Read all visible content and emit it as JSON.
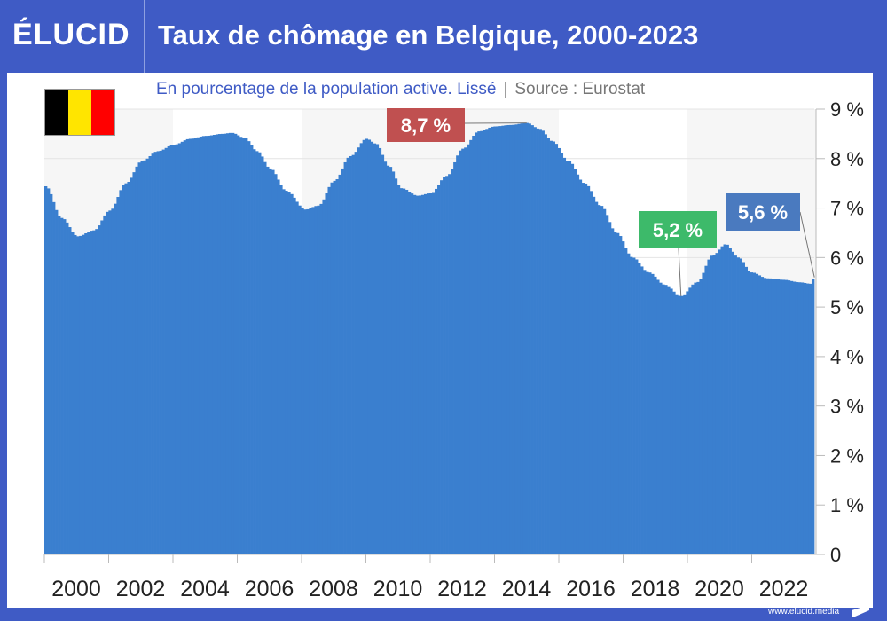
{
  "header": {
    "logo": "ÉLUCID",
    "title": "Taux de chômage en Belgique, 2000-2023"
  },
  "subtitle": {
    "text": "En pourcentage de la population active. Lissé",
    "separator": "|",
    "source": "Source : Eurostat"
  },
  "flag": {
    "colors": [
      "#000000",
      "#ffe500",
      "#ff0000"
    ]
  },
  "footer": {
    "url": "www.elucid.media"
  },
  "colors": {
    "bar": "#3a7fcf",
    "band": "#f6f6f6",
    "label_max": "#c05050",
    "label_min": "#3dba6a",
    "label_last": "#4a7abf"
  },
  "chart_data": {
    "type": "bar",
    "title": "Taux de chômage en Belgique, 2000-2023",
    "subtitle": "En pourcentage de la population active. Lissé",
    "xlabel": "",
    "ylabel": "",
    "xlim": [
      2000,
      2024
    ],
    "ylim": [
      0,
      9
    ],
    "grid": true,
    "y_ticks": [
      0,
      1,
      2,
      3,
      4,
      5,
      6,
      7,
      8,
      9
    ],
    "y_tick_labels": [
      "0",
      "1 %",
      "2 %",
      "3 %",
      "4 %",
      "5 %",
      "6 %",
      "7 %",
      "8 %",
      "9 %"
    ],
    "x_ticks": [
      2000,
      2002,
      2004,
      2006,
      2008,
      2010,
      2012,
      2014,
      2016,
      2018,
      2020,
      2022
    ],
    "x_tick_labels": [
      "2000",
      "2002",
      "2004",
      "2006",
      "2008",
      "2010",
      "2012",
      "2014",
      "2016",
      "2018",
      "2020",
      "2022"
    ],
    "series": [
      {
        "name": "Taux de chômage",
        "frequency": "monthly",
        "x": [
          2000.0,
          2000.5,
          2001.0,
          2001.5,
          2002.0,
          2002.5,
          2003.0,
          2003.5,
          2004.0,
          2004.5,
          2005.0,
          2005.5,
          2005.8,
          2006.2,
          2006.6,
          2007.0,
          2007.5,
          2008.1,
          2008.5,
          2009.0,
          2009.5,
          2010.0,
          2010.3,
          2010.7,
          2011.1,
          2011.6,
          2012.0,
          2012.5,
          2013.0,
          2013.5,
          2014.0,
          2014.5,
          2015.0,
          2015.4,
          2015.8,
          2016.3,
          2016.8,
          2017.3,
          2017.8,
          2018.3,
          2018.8,
          2019.3,
          2019.8,
          2020.3,
          2020.8,
          2021.2,
          2021.6,
          2022.0,
          2022.5,
          2023.0,
          2023.5,
          2023.85,
          2023.95
        ],
        "values": [
          7.44,
          6.8,
          6.43,
          6.55,
          6.95,
          7.5,
          7.95,
          8.15,
          8.28,
          8.4,
          8.46,
          8.5,
          8.52,
          8.42,
          8.15,
          7.8,
          7.35,
          6.97,
          7.05,
          7.55,
          8.05,
          8.4,
          8.3,
          7.85,
          7.4,
          7.25,
          7.3,
          7.65,
          8.2,
          8.55,
          8.65,
          8.68,
          8.72,
          8.6,
          8.35,
          7.95,
          7.5,
          7.05,
          6.5,
          6.0,
          5.7,
          5.45,
          5.22,
          5.5,
          6.05,
          6.27,
          6.0,
          5.7,
          5.58,
          5.55,
          5.5,
          5.47,
          5.6
        ]
      }
    ],
    "annotations": [
      {
        "text": "8,7 %",
        "x": 2015.0,
        "y": 8.72,
        "kind": "max"
      },
      {
        "text": "5,2 %",
        "x": 2019.8,
        "y": 5.22,
        "kind": "min"
      },
      {
        "text": "5,6 %",
        "x": 2023.95,
        "y": 5.6,
        "kind": "last"
      }
    ]
  }
}
